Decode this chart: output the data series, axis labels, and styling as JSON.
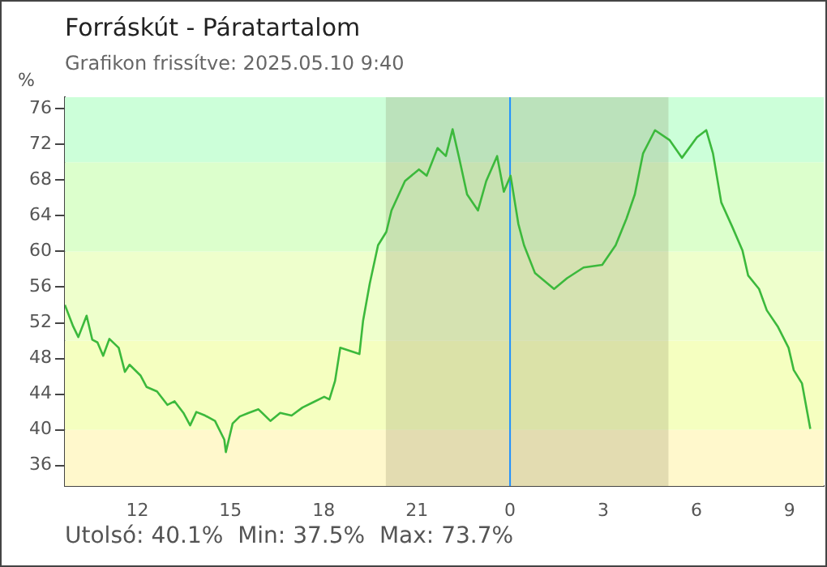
{
  "chart_data": {
    "type": "line",
    "title": "Forráskút - Páratartalom",
    "subtitle": "Grafikon frissítve: 2025.05.10 9:40",
    "ylabel": "%",
    "annotations": [
      "Utolsó: 40.1%  Min: 37.5%  Max: 73.7%"
    ],
    "x": [
      "2025-05-09T09:40",
      "2025-05-09T09:56",
      "2025-05-09T10:06",
      "2025-05-09T10:22",
      "2025-05-09T10:33",
      "2025-05-09T10:43",
      "2025-05-09T10:54",
      "2025-05-09T11:06",
      "2025-05-09T11:24",
      "2025-05-09T11:36",
      "2025-05-09T11:45",
      "2025-05-09T12:06",
      "2025-05-09T12:18",
      "2025-05-09T12:38",
      "2025-05-09T12:58",
      "2025-05-09T13:12",
      "2025-05-09T13:29",
      "2025-05-09T13:42",
      "2025-05-09T13:54",
      "2025-05-09T14:11",
      "2025-05-09T14:30",
      "2025-05-09T14:48",
      "2025-05-09T14:51",
      "2025-05-09T15:04",
      "2025-05-09T15:18",
      "2025-05-09T15:35",
      "2025-05-09T15:54",
      "2025-05-09T16:17",
      "2025-05-09T16:36",
      "2025-05-09T16:58",
      "2025-05-09T17:19",
      "2025-05-09T17:40",
      "2025-05-09T18:01",
      "2025-05-09T18:11",
      "2025-05-09T18:22",
      "2025-05-09T18:32",
      "2025-05-09T19:09",
      "2025-05-09T19:16",
      "2025-05-09T19:29",
      "2025-05-09T19:45",
      "2025-05-09T20:01",
      "2025-05-09T20:11",
      "2025-05-09T20:37",
      "2025-05-09T21:04",
      "2025-05-09T21:19",
      "2025-05-09T21:40",
      "2025-05-09T21:56",
      "2025-05-09T22:09",
      "2025-05-09T22:22",
      "2025-05-09T22:37",
      "2025-05-09T22:58",
      "2025-05-09T23:14",
      "2025-05-09T23:35",
      "2025-05-09T23:48",
      "2025-05-10T00:01",
      "2025-05-10T00:16",
      "2025-05-10T00:27",
      "2025-05-10T00:48",
      "2025-05-10T01:25",
      "2025-05-10T01:50",
      "2025-05-10T02:22",
      "2025-05-10T02:58",
      "2025-05-10T03:24",
      "2025-05-10T03:45",
      "2025-05-10T04:01",
      "2025-05-10T04:17",
      "2025-05-10T04:40",
      "2025-05-10T05:08",
      "2025-05-10T05:32",
      "2025-05-10T06:01",
      "2025-05-10T06:19",
      "2025-05-10T06:32",
      "2025-05-10T06:48",
      "2025-05-10T07:09",
      "2025-05-10T07:29",
      "2025-05-10T07:40",
      "2025-05-10T08:01",
      "2025-05-10T08:16",
      "2025-05-10T08:37",
      "2025-05-10T08:58",
      "2025-05-10T09:08",
      "2025-05-10T09:24",
      "2025-05-10T09:40"
    ],
    "series": [
      {
        "color": "#3cb93c",
        "values": [
          54.0,
          51.6,
          50.4,
          52.8,
          50.1,
          49.8,
          48.3,
          50.2,
          49.2,
          46.5,
          47.3,
          46.1,
          44.8,
          44.3,
          42.8,
          43.2,
          41.9,
          40.5,
          42.0,
          41.6,
          41.0,
          38.9,
          37.5,
          40.7,
          41.5,
          41.9,
          42.3,
          41.0,
          41.9,
          41.6,
          42.5,
          43.1,
          43.7,
          43.4,
          45.5,
          49.2,
          48.5,
          52.2,
          56.4,
          60.7,
          62.2,
          64.6,
          67.9,
          69.2,
          68.5,
          71.6,
          70.7,
          73.7,
          70.4,
          66.4,
          64.6,
          67.9,
          70.7,
          66.7,
          68.5,
          63.1,
          60.7,
          57.6,
          55.8,
          57.0,
          58.2,
          58.5,
          60.7,
          63.7,
          66.4,
          71.0,
          73.6,
          72.5,
          70.5,
          72.8,
          73.6,
          71.0,
          65.5,
          62.8,
          60.1,
          57.3,
          55.8,
          53.4,
          51.6,
          49.2,
          46.7,
          45.2,
          40.1
        ]
      }
    ],
    "xlim": [
      "2025-05-09T09:40",
      "2025-05-10T10:06"
    ],
    "xticks": [
      {
        "value": "2025-05-09T12:00",
        "label": "12"
      },
      {
        "value": "2025-05-09T15:00",
        "label": "15"
      },
      {
        "value": "2025-05-09T18:00",
        "label": "18"
      },
      {
        "value": "2025-05-09T21:00",
        "label": "21"
      },
      {
        "value": "2025-05-10T00:00",
        "label": "0"
      },
      {
        "value": "2025-05-10T03:00",
        "label": "3"
      },
      {
        "value": "2025-05-10T06:00",
        "label": "6"
      },
      {
        "value": "2025-05-10T09:00",
        "label": "9"
      }
    ],
    "ylim": [
      33.7,
      77.3
    ],
    "yticks": [
      36,
      40,
      44,
      48,
      52,
      56,
      60,
      64,
      68,
      72,
      76
    ],
    "bands": [
      {
        "axis": "y",
        "from": 33.7,
        "to": 40,
        "color": "#fff8cc"
      },
      {
        "axis": "y",
        "from": 40,
        "to": 50,
        "color": "#f5ffc0"
      },
      {
        "axis": "y",
        "from": 50,
        "to": 60,
        "color": "#eeffcc"
      },
      {
        "axis": "y",
        "from": 60,
        "to": 70,
        "color": "#dcffcc"
      },
      {
        "axis": "y",
        "from": 70,
        "to": 77.3,
        "color": "#ccffd9"
      },
      {
        "axis": "x",
        "from": "2025-05-09T20:00",
        "to": "2025-05-10T05:06",
        "color": "#807a50"
      }
    ],
    "ref_lines": [
      {
        "axis": "x",
        "value": "2025-05-10T00:00",
        "color": "#1e90ff"
      }
    ],
    "grid": false,
    "legend": false,
    "marker": "none",
    "line_style": "solid"
  }
}
